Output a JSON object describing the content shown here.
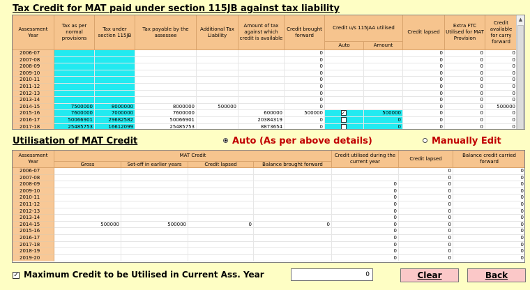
{
  "top_section": {
    "title": "Tax Credit for MAT paid under section 115JB against tax liability",
    "headers": {
      "assessment_year": "Assessment Year",
      "tax_normal": "Tax as per normal provisions",
      "tax_115jb": "Tax under section 115JB",
      "tax_payable": "Tax payable by the assessee",
      "additional": "Additional Tax Liability",
      "amount_available": "Amount of tax against which credit is available",
      "credit_bf": "Credit brought forward",
      "credit_utilised": "Credit u/s 115JAA utilised",
      "auto": "Auto",
      "amount": "Amount",
      "credit_lapsed": "Credit lapsed",
      "extra_ftc": "Extra FTC Utilised for MAT Provision",
      "credit_cf": "Credit available for carry forward"
    },
    "rows": [
      {
        "year": "2006-07",
        "tax_normal": "",
        "tax_115jb": "",
        "tax_payable": "",
        "additional": "",
        "amount_available": "",
        "credit_bf": "0",
        "auto": "",
        "amount": "",
        "credit_lapsed": "0",
        "extra_ftc": "0",
        "credit_cf": "0"
      },
      {
        "year": "2007-08",
        "tax_normal": "",
        "tax_115jb": "",
        "tax_payable": "",
        "additional": "",
        "amount_available": "",
        "credit_bf": "0",
        "auto": "",
        "amount": "",
        "credit_lapsed": "0",
        "extra_ftc": "0",
        "credit_cf": "0"
      },
      {
        "year": "2008-09",
        "tax_normal": "",
        "tax_115jb": "",
        "tax_payable": "",
        "additional": "",
        "amount_available": "",
        "credit_bf": "0",
        "auto": "",
        "amount": "",
        "credit_lapsed": "0",
        "extra_ftc": "0",
        "credit_cf": "0"
      },
      {
        "year": "2009-10",
        "tax_normal": "",
        "tax_115jb": "",
        "tax_payable": "",
        "additional": "",
        "amount_available": "",
        "credit_bf": "0",
        "auto": "",
        "amount": "",
        "credit_lapsed": "0",
        "extra_ftc": "0",
        "credit_cf": "0"
      },
      {
        "year": "2010-11",
        "tax_normal": "",
        "tax_115jb": "",
        "tax_payable": "",
        "additional": "",
        "amount_available": "",
        "credit_bf": "0",
        "auto": "",
        "amount": "",
        "credit_lapsed": "0",
        "extra_ftc": "0",
        "credit_cf": "0"
      },
      {
        "year": "2011-12",
        "tax_normal": "",
        "tax_115jb": "",
        "tax_payable": "",
        "additional": "",
        "amount_available": "",
        "credit_bf": "0",
        "auto": "",
        "amount": "",
        "credit_lapsed": "0",
        "extra_ftc": "0",
        "credit_cf": "0"
      },
      {
        "year": "2012-13",
        "tax_normal": "",
        "tax_115jb": "",
        "tax_payable": "",
        "additional": "",
        "amount_available": "",
        "credit_bf": "0",
        "auto": "",
        "amount": "",
        "credit_lapsed": "0",
        "extra_ftc": "0",
        "credit_cf": "0"
      },
      {
        "year": "2013-14",
        "tax_normal": "",
        "tax_115jb": "",
        "tax_payable": "",
        "additional": "",
        "amount_available": "",
        "credit_bf": "0",
        "auto": "",
        "amount": "",
        "credit_lapsed": "0",
        "extra_ftc": "0",
        "credit_cf": "0"
      },
      {
        "year": "2014-15",
        "tax_normal": "7500000",
        "tax_115jb": "8000000",
        "tax_payable": "8000000",
        "additional": "500000",
        "amount_available": "",
        "credit_bf": "0",
        "auto": "",
        "amount": "",
        "credit_lapsed": "0",
        "extra_ftc": "0",
        "credit_cf": "500000"
      },
      {
        "year": "2015-16",
        "tax_normal": "7600000",
        "tax_115jb": "7000000",
        "tax_payable": "7600000",
        "additional": "",
        "amount_available": "600000",
        "credit_bf": "500000",
        "auto": "checked",
        "amount": "500000",
        "credit_lapsed": "0",
        "extra_ftc": "0",
        "credit_cf": "0"
      },
      {
        "year": "2016-17",
        "tax_normal": "50066901",
        "tax_115jb": "29682582",
        "tax_payable": "50066901",
        "additional": "",
        "amount_available": "20384319",
        "credit_bf": "0",
        "auto": "unchecked",
        "amount": "0",
        "credit_lapsed": "0",
        "extra_ftc": "0",
        "credit_cf": "0"
      },
      {
        "year": "2017-18",
        "tax_normal": "25485753",
        "tax_115jb": "16612099",
        "tax_payable": "25485753",
        "additional": "",
        "amount_available": "8873654",
        "credit_bf": "0",
        "auto": "unchecked",
        "amount": "0",
        "credit_lapsed": "0",
        "extra_ftc": "0",
        "credit_cf": "0"
      }
    ]
  },
  "mode": {
    "auto_label": "Auto (As per above details)",
    "manual_label": "Manually Edit",
    "selected": "auto"
  },
  "bottom_section": {
    "title": "Utilisation of MAT Credit",
    "headers": {
      "assessment_year": "Assessment Year",
      "mat_credit": "MAT Credit",
      "gross": "Gross",
      "setoff": "Set-off in earlier years",
      "credit_lapsed": "Credit lapsed",
      "balance_bf": "Balance brought forward",
      "utilised_current": "Credit utilised during the current year",
      "credit_lapsed2": "Credit lapsed",
      "balance_cf": "Balance credit carried forward"
    },
    "rows": [
      {
        "year": "2006-07",
        "gross": "",
        "setoff": "",
        "lapsed": "",
        "balance_bf": "",
        "utilised": "",
        "lapsed2": "0",
        "balance_cf": "0"
      },
      {
        "year": "2007-08",
        "gross": "",
        "setoff": "",
        "lapsed": "",
        "balance_bf": "",
        "utilised": "",
        "lapsed2": "0",
        "balance_cf": "0"
      },
      {
        "year": "2008-09",
        "gross": "",
        "setoff": "",
        "lapsed": "",
        "balance_bf": "",
        "utilised": "0",
        "lapsed2": "0",
        "balance_cf": "0"
      },
      {
        "year": "2009-10",
        "gross": "",
        "setoff": "",
        "lapsed": "",
        "balance_bf": "",
        "utilised": "0",
        "lapsed2": "0",
        "balance_cf": "0"
      },
      {
        "year": "2010-11",
        "gross": "",
        "setoff": "",
        "lapsed": "",
        "balance_bf": "",
        "utilised": "0",
        "lapsed2": "0",
        "balance_cf": "0"
      },
      {
        "year": "2011-12",
        "gross": "",
        "setoff": "",
        "lapsed": "",
        "balance_bf": "",
        "utilised": "0",
        "lapsed2": "0",
        "balance_cf": "0"
      },
      {
        "year": "2012-13",
        "gross": "",
        "setoff": "",
        "lapsed": "",
        "balance_bf": "",
        "utilised": "0",
        "lapsed2": "0",
        "balance_cf": "0"
      },
      {
        "year": "2013-14",
        "gross": "",
        "setoff": "",
        "lapsed": "",
        "balance_bf": "",
        "utilised": "0",
        "lapsed2": "0",
        "balance_cf": "0"
      },
      {
        "year": "2014-15",
        "gross": "500000",
        "setoff": "500000",
        "lapsed": "0",
        "balance_bf": "0",
        "utilised": "0",
        "lapsed2": "0",
        "balance_cf": "0"
      },
      {
        "year": "2015-16",
        "gross": "",
        "setoff": "",
        "lapsed": "",
        "balance_bf": "",
        "utilised": "0",
        "lapsed2": "0",
        "balance_cf": "0"
      },
      {
        "year": "2016-17",
        "gross": "",
        "setoff": "",
        "lapsed": "",
        "balance_bf": "",
        "utilised": "0",
        "lapsed2": "0",
        "balance_cf": "0"
      },
      {
        "year": "2017-18",
        "gross": "",
        "setoff": "",
        "lapsed": "",
        "balance_bf": "",
        "utilised": "0",
        "lapsed2": "0",
        "balance_cf": "0"
      },
      {
        "year": "2018-19",
        "gross": "",
        "setoff": "",
        "lapsed": "",
        "balance_bf": "",
        "utilised": "0",
        "lapsed2": "0",
        "balance_cf": "0"
      },
      {
        "year": "2019-20",
        "gross": "",
        "setoff": "",
        "lapsed": "",
        "balance_bf": "",
        "utilised": "0",
        "lapsed2": "0",
        "balance_cf": "0"
      }
    ]
  },
  "footer": {
    "max_credit_label": "Maximum Credit to be Utilised in Current Ass. Year",
    "max_credit_checked": "☑",
    "max_credit_value": "0",
    "clear_label": "Clear",
    "back_label": "Back"
  },
  "colors": {
    "background": "#fefec4",
    "header": "#f6c48e",
    "highlight": "#22eaf0",
    "radio_text": "#c00000",
    "button": "#fbc8c8"
  }
}
